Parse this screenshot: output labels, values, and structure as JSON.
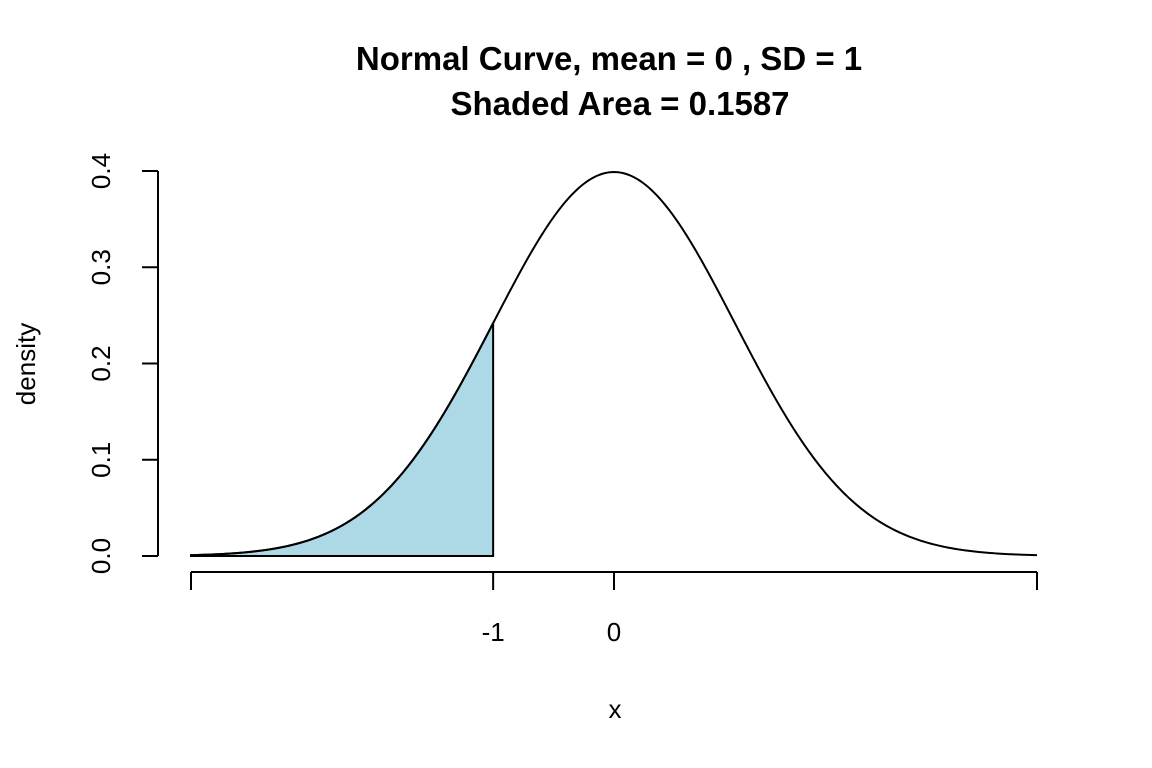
{
  "chart_data": {
    "type": "area",
    "title": "Normal Curve, mean =  0 , SD =  1",
    "subtitle": "Shaded Area =  0.1587",
    "xlabel": "x",
    "ylabel": "density",
    "mean": 0,
    "sd": 1,
    "shaded_area": 0.1587,
    "shade_from": -3.5,
    "shade_to": -1,
    "xlim": [
      -3.5,
      3.5
    ],
    "ylim": [
      0,
      0.4
    ],
    "x_ticks": [
      -3.5,
      -1,
      0,
      3.5
    ],
    "x_tick_labels": [
      "",
      "-1",
      "0",
      ""
    ],
    "y_ticks": [
      0,
      0.1,
      0.2,
      0.3,
      0.4
    ],
    "y_tick_labels": [
      "0.0",
      "0.1",
      "0.2",
      "0.3",
      "0.4"
    ],
    "grid": false,
    "colors": {
      "shade": "#add8e6",
      "curve": "#000000"
    }
  }
}
